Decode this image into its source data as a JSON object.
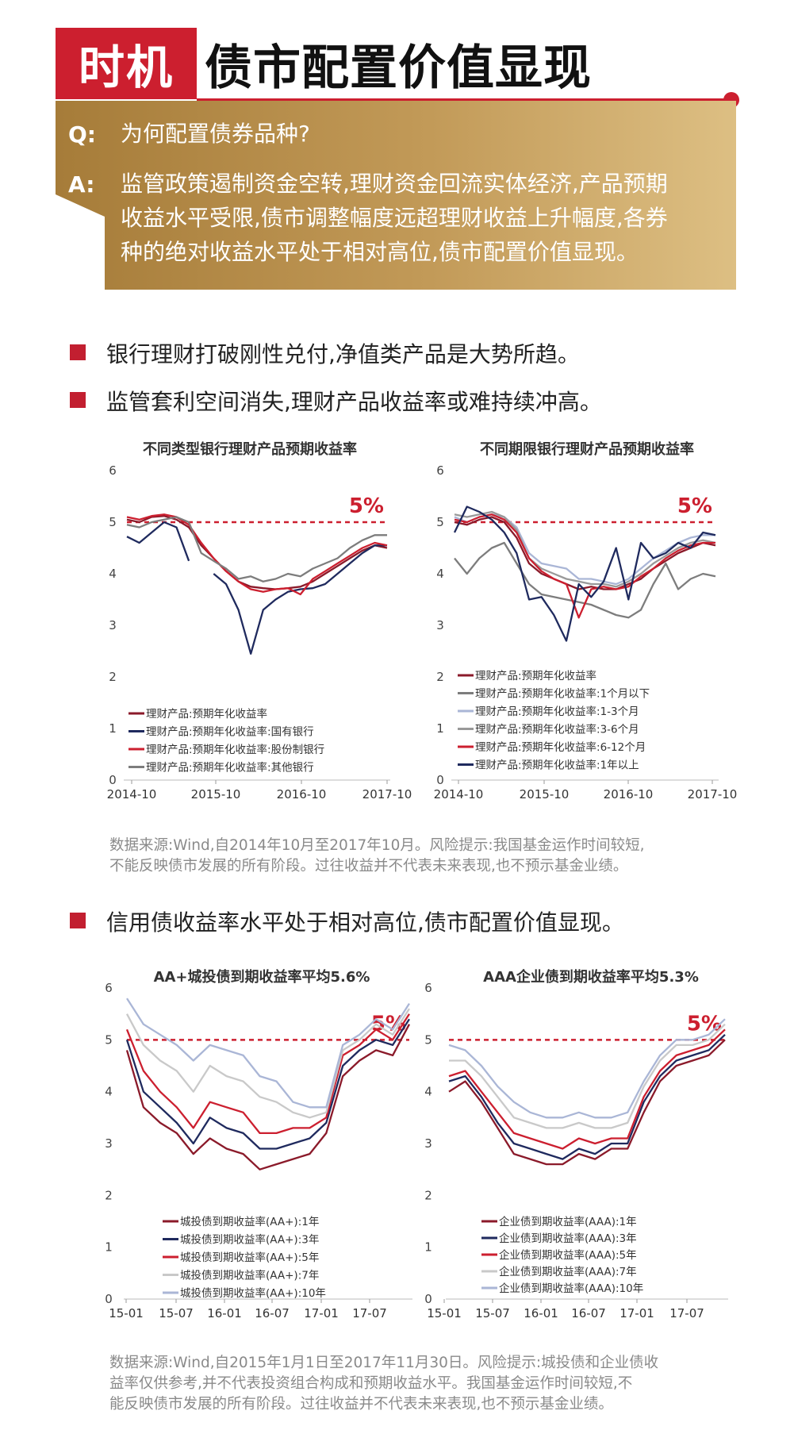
{
  "header": {
    "tag": "时机",
    "title": "债市配置价值显现"
  },
  "qa": {
    "q_label": "Q:",
    "question": "为何配置债券品种?",
    "a_label": "A:",
    "answer_lines": [
      "监管政策遏制资金空转,理财资金回流实体经济,产品预期",
      "收益水平受限,债市调整幅度远超理财收益上升幅度,各券",
      "种的绝对收益水平处于相对高位,债市配置价值显现。"
    ]
  },
  "bullets": [
    "银行理财打破刚性兑付,净值类产品是大势所趋。",
    "监管套利空间消失,理财产品收益率或难持续冲高。",
    "信用债收益率水平处于相对高位,债市配置价值显现。"
  ],
  "notes": {
    "note1": [
      "数据来源:Wind,自2014年10月至2017年10月。风险提示:我国基金运作时间较短,",
      "不能反映债市发展的所有阶段。过往收益并不代表未来表现,也不预示基金业绩。"
    ],
    "note2": [
      "数据来源:Wind,自2015年1月1日至2017年11月30日。风险提示:城投债和企业债收",
      "益率仅供参考,并不代表投资组合构成和预期收益水平。我国基金运作时间较短,不",
      "能反映债市发展的所有阶段。过往收益并不代表未来表现,也不预示基金业绩。"
    ]
  },
  "colors": {
    "red": "#cc1f2f",
    "dark_red": "#8b1a2a",
    "navy": "#1f2a5e",
    "gray": "#7d7d7d",
    "light_gray": "#bdbdbd",
    "light_blue": "#aab6d6",
    "gold": "#b9904e"
  },
  "chart_data": [
    {
      "type": "line",
      "title": "不同类型银行理财产品预期收益率",
      "ylim": [
        0,
        6
      ],
      "yticks": [
        "0",
        "1",
        "2",
        "3",
        "4",
        "5",
        "6"
      ],
      "xticks": [
        "2014-10",
        "2015-10",
        "2016-10",
        "2017-10"
      ],
      "ref_line": 5,
      "ref_label": "5%",
      "legend_position": "bottom-left",
      "series": [
        {
          "name": "理财产品:预期年化收益率",
          "color": "#8b1a2a",
          "values": [
            5.05,
            5.0,
            5.1,
            5.12,
            5.05,
            4.9,
            4.55,
            4.3,
            4.05,
            3.85,
            3.75,
            3.72,
            3.7,
            3.72,
            3.75,
            3.85,
            4.0,
            4.15,
            4.3,
            4.45,
            4.55,
            4.5
          ]
        },
        {
          "name": "理财产品:预期年化收益率:国有银行",
          "color": "#1f2a5e",
          "values": [
            4.72,
            4.6,
            4.8,
            5.0,
            4.9,
            4.25,
            null,
            4.0,
            3.8,
            3.3,
            2.45,
            3.3,
            3.5,
            3.65,
            3.7,
            3.72,
            3.8,
            4.0,
            4.2,
            4.4,
            4.55,
            4.55
          ]
        },
        {
          "name": "理财产品:预期年化收益率:股份制银行",
          "color": "#cc1f2f",
          "values": [
            5.1,
            5.05,
            5.12,
            5.15,
            5.1,
            4.95,
            4.6,
            4.3,
            4.05,
            3.85,
            3.7,
            3.65,
            3.7,
            3.72,
            3.6,
            3.9,
            4.05,
            4.2,
            4.35,
            4.5,
            4.6,
            4.55
          ]
        },
        {
          "name": "理财产品:预期年化收益率:其他银行",
          "color": "#7d7d7d",
          "values": [
            4.95,
            4.9,
            5.0,
            5.05,
            5.1,
            5.0,
            4.4,
            4.25,
            4.1,
            3.9,
            3.95,
            3.85,
            3.9,
            4.0,
            3.95,
            4.1,
            4.2,
            4.3,
            4.5,
            4.65,
            4.75,
            4.75
          ]
        }
      ]
    },
    {
      "type": "line",
      "title": "不同期限银行理财产品预期收益率",
      "ylim": [
        0,
        6
      ],
      "yticks": [
        "0",
        "1",
        "2",
        "3",
        "4",
        "5",
        "6"
      ],
      "xticks": [
        "2014-10",
        "2015-10",
        "2016-10",
        "2017-10"
      ],
      "ref_line": 5,
      "ref_label": "5%",
      "legend_position": "bottom-left",
      "series": [
        {
          "name": "理财产品:预期年化收益率",
          "color": "#8b1a2a",
          "values": [
            5.0,
            4.95,
            5.05,
            5.1,
            5.0,
            4.7,
            4.2,
            4.0,
            3.9,
            3.8,
            3.7,
            3.75,
            3.7,
            3.7,
            3.8,
            3.9,
            4.1,
            4.25,
            4.4,
            4.5,
            4.6,
            4.55
          ]
        },
        {
          "name": "理财产品:预期年化收益率:1个月以下",
          "color": "#7d7d7d",
          "values": [
            4.3,
            4.0,
            4.3,
            4.5,
            4.6,
            4.2,
            3.8,
            3.6,
            3.55,
            3.5,
            3.45,
            3.4,
            3.3,
            3.2,
            3.15,
            3.3,
            3.8,
            4.2,
            3.7,
            3.9,
            4.0,
            3.95
          ]
        },
        {
          "name": "理财产品:预期年化收益率:1-3个月",
          "color": "#aab6d6",
          "values": [
            5.1,
            5.0,
            5.1,
            5.15,
            5.1,
            4.9,
            4.4,
            4.2,
            4.15,
            4.1,
            3.9,
            3.9,
            3.85,
            3.8,
            3.9,
            4.1,
            4.3,
            4.45,
            4.6,
            4.7,
            4.75,
            4.75
          ]
        },
        {
          "name": "理财产品:预期年化收益率:3-6个月",
          "color": "#999999",
          "values": [
            5.15,
            5.1,
            5.15,
            5.2,
            5.1,
            4.85,
            4.3,
            4.1,
            4.0,
            3.9,
            3.85,
            3.8,
            3.8,
            3.75,
            3.85,
            4.0,
            4.2,
            4.35,
            4.5,
            4.6,
            4.65,
            4.6
          ]
        },
        {
          "name": "理财产品:预期年化收益率:6-12个月",
          "color": "#cc1f2f",
          "values": [
            5.05,
            5.0,
            5.1,
            5.15,
            5.05,
            4.8,
            4.3,
            4.05,
            3.9,
            3.8,
            3.15,
            3.7,
            3.75,
            3.7,
            3.75,
            3.95,
            4.1,
            4.3,
            4.45,
            4.55,
            4.6,
            4.6
          ]
        },
        {
          "name": "理财产品:预期年化收益率:1年以上",
          "color": "#1f2a5e",
          "values": [
            4.8,
            5.3,
            5.2,
            5.05,
            4.8,
            4.4,
            3.5,
            3.55,
            3.2,
            2.7,
            3.8,
            3.55,
            3.85,
            4.5,
            3.5,
            4.6,
            4.3,
            4.4,
            4.6,
            4.5,
            4.8,
            4.75
          ]
        }
      ]
    },
    {
      "type": "line",
      "title": "AA+城投债到期收益率平均5.6%",
      "ylim": [
        0,
        6
      ],
      "yticks": [
        "0",
        "1",
        "2",
        "3",
        "4",
        "5",
        "6"
      ],
      "xticks": [
        "15-01",
        "15-07",
        "16-01",
        "16-07",
        "17-01",
        "17-07"
      ],
      "ref_line": 5,
      "ref_label": "5%",
      "legend_position": "bottom-left",
      "series": [
        {
          "name": "城投债到期收益率(AA+):1年",
          "color": "#8b1a2a",
          "values": [
            4.8,
            3.7,
            3.4,
            3.2,
            2.8,
            3.1,
            2.9,
            2.8,
            2.5,
            2.6,
            2.7,
            2.8,
            3.2,
            4.3,
            4.6,
            4.8,
            4.7,
            5.3
          ]
        },
        {
          "name": "城投债到期收益率(AA+):3年",
          "color": "#1f2a5e",
          "values": [
            5.0,
            4.0,
            3.7,
            3.4,
            3.0,
            3.5,
            3.3,
            3.2,
            2.9,
            2.9,
            3.0,
            3.1,
            3.4,
            4.5,
            4.8,
            5.0,
            4.9,
            5.4
          ]
        },
        {
          "name": "城投债到期收益率(AA+):5年",
          "color": "#cc1f2f",
          "values": [
            5.2,
            4.4,
            4.0,
            3.7,
            3.3,
            3.8,
            3.7,
            3.6,
            3.2,
            3.2,
            3.3,
            3.3,
            3.5,
            4.7,
            4.9,
            5.2,
            5.0,
            5.5
          ]
        },
        {
          "name": "城投债到期收益率(AA+):7年",
          "color": "#c9c9c9",
          "values": [
            5.5,
            4.9,
            4.6,
            4.4,
            4.0,
            4.5,
            4.3,
            4.2,
            3.9,
            3.8,
            3.6,
            3.5,
            3.6,
            4.8,
            5.0,
            5.3,
            5.1,
            5.6
          ]
        },
        {
          "name": "城投债到期收益率(AA+):10年",
          "color": "#aab6d6",
          "values": [
            5.8,
            5.3,
            5.1,
            4.9,
            4.6,
            4.9,
            4.8,
            4.7,
            4.3,
            4.2,
            3.8,
            3.7,
            3.7,
            4.9,
            5.1,
            5.4,
            5.2,
            5.7
          ]
        }
      ]
    },
    {
      "type": "line",
      "title": "AAA企业债到期收益率平均5.3%",
      "ylim": [
        0,
        6
      ],
      "yticks": [
        "0",
        "1",
        "2",
        "3",
        "4",
        "5",
        "6"
      ],
      "xticks": [
        "15-01",
        "15-07",
        "16-01",
        "16-07",
        "17-01",
        "17-07"
      ],
      "ref_line": 5,
      "ref_label": "5%",
      "legend_position": "bottom-left",
      "series": [
        {
          "name": "企业债到期收益率(AAA):1年",
          "color": "#8b1a2a",
          "values": [
            4.0,
            4.2,
            3.8,
            3.3,
            2.8,
            2.7,
            2.6,
            2.6,
            2.8,
            2.7,
            2.9,
            2.9,
            3.6,
            4.2,
            4.5,
            4.6,
            4.7,
            5.0
          ]
        },
        {
          "name": "企业债到期收益率(AAA):3年",
          "color": "#1f2a5e",
          "values": [
            4.2,
            4.3,
            3.9,
            3.4,
            3.0,
            2.9,
            2.8,
            2.7,
            2.9,
            2.8,
            3.0,
            3.0,
            3.8,
            4.3,
            4.6,
            4.7,
            4.8,
            5.1
          ]
        },
        {
          "name": "企业债到期收益率(AAA):5年",
          "color": "#cc1f2f",
          "values": [
            4.3,
            4.4,
            4.0,
            3.6,
            3.2,
            3.1,
            3.0,
            2.9,
            3.1,
            3.0,
            3.1,
            3.1,
            3.9,
            4.4,
            4.7,
            4.8,
            4.9,
            5.2
          ]
        },
        {
          "name": "企业债到期收益率(AAA):7年",
          "color": "#c9c9c9",
          "values": [
            4.6,
            4.6,
            4.3,
            3.9,
            3.5,
            3.4,
            3.3,
            3.3,
            3.4,
            3.3,
            3.3,
            3.4,
            4.1,
            4.6,
            4.9,
            4.9,
            5.0,
            5.3
          ]
        },
        {
          "name": "企业债到期收益率(AAA):10年",
          "color": "#aab6d6",
          "values": [
            4.9,
            4.8,
            4.5,
            4.1,
            3.8,
            3.6,
            3.5,
            3.5,
            3.6,
            3.5,
            3.5,
            3.6,
            4.2,
            4.7,
            5.0,
            5.0,
            5.1,
            5.4
          ]
        }
      ]
    }
  ]
}
